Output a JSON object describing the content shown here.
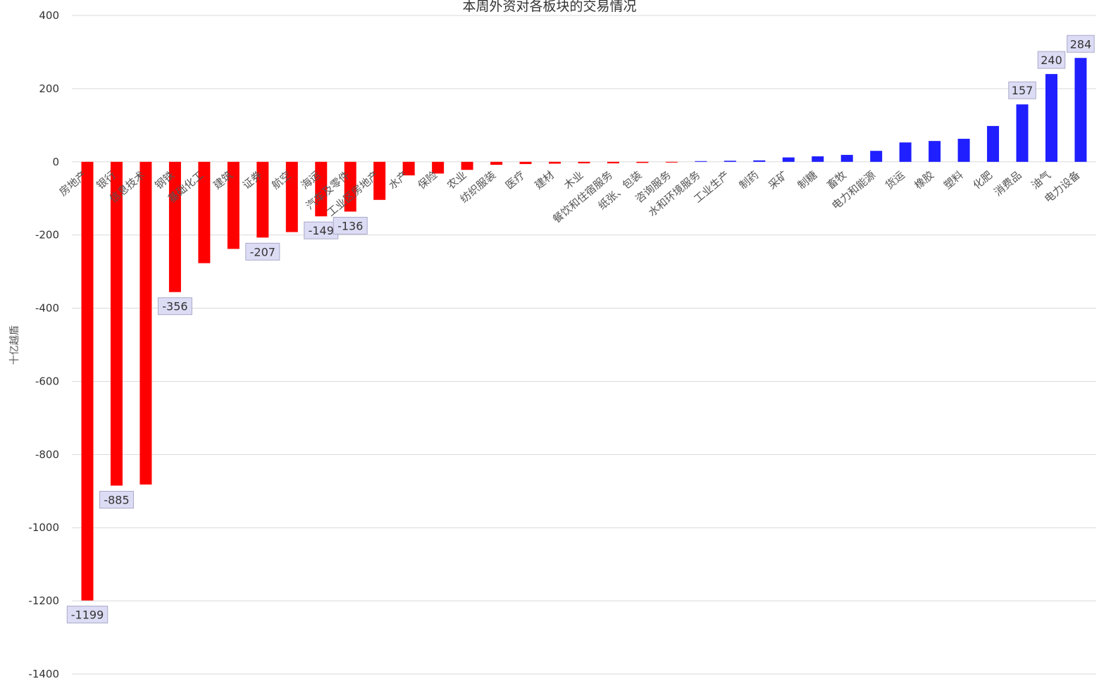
{
  "chart_data": {
    "type": "bar",
    "title": "本周外资对各板块的交易情况",
    "xlabel": "",
    "ylabel": "十亿越盾",
    "ylim": [
      -1400,
      400
    ],
    "yticks": [
      400,
      200,
      0,
      -200,
      -400,
      -600,
      -800,
      -1000,
      -1200,
      -1400
    ],
    "grid": true,
    "legend": "none",
    "colors": {
      "negative": "#ff0000",
      "positive": "#1f1fff"
    },
    "categories": [
      "房地产",
      "银行",
      "信息技术",
      "钢铁",
      "基础化工",
      "建筑",
      "证券",
      "航空",
      "海运",
      "汽车及零件",
      "工业区房地产",
      "水产",
      "保险",
      "农业",
      "纺织服装",
      "医疗",
      "建材",
      "木业",
      "餐饮和住宿服务",
      "纸张、包装",
      "咨询服务",
      "水和环境服务",
      "工业生产",
      "制药",
      "采矿",
      "制糖",
      "畜牧",
      "电力和能源",
      "货运",
      "橡胶",
      "塑料",
      "化肥",
      "消费品",
      "油气",
      "电力设备"
    ],
    "values": [
      -1199,
      -885,
      -882,
      -356,
      -277,
      -238,
      -207,
      -192,
      -149,
      -136,
      -104,
      -37,
      -32,
      -22,
      -8,
      -6,
      -5,
      -4,
      -4,
      -3,
      -2,
      2,
      3,
      4,
      12,
      15,
      19,
      30,
      53,
      57,
      63,
      98,
      157,
      240,
      284
    ],
    "data_labels": [
      {
        "index": 0,
        "text": "-1199"
      },
      {
        "index": 1,
        "text": "-885"
      },
      {
        "index": 3,
        "text": "-356"
      },
      {
        "index": 6,
        "text": "-207"
      },
      {
        "index": 8,
        "text": "-149"
      },
      {
        "index": 9,
        "text": "-136"
      },
      {
        "index": 32,
        "text": "157"
      },
      {
        "index": 33,
        "text": "240"
      },
      {
        "index": 34,
        "text": "284"
      }
    ]
  }
}
